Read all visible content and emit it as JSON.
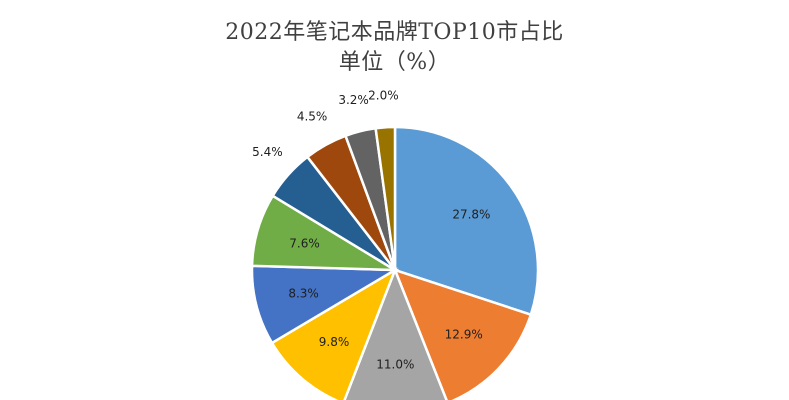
{
  "chart_data": {
    "type": "pie",
    "title": "2022年笔记本品牌TOP10市占比",
    "subtitle": "单位（%）",
    "slices": [
      {
        "value": 27.8,
        "label": "27.8%",
        "color": "#5B9BD5"
      },
      {
        "value": 12.9,
        "label": "12.9%",
        "color": "#ED7D31"
      },
      {
        "value": 11.0,
        "label": "11.0%",
        "color": "#A5A5A5"
      },
      {
        "value": 9.8,
        "label": "9.8%",
        "color": "#FFC000"
      },
      {
        "value": 8.3,
        "label": "8.3%",
        "color": "#4472C4"
      },
      {
        "value": 7.6,
        "label": "7.6%",
        "color": "#70AD47"
      },
      {
        "value": 5.4,
        "label": "5.4%",
        "color": "#255E91"
      },
      {
        "value": 4.5,
        "label": "4.5%",
        "color": "#9E480E"
      },
      {
        "value": 3.2,
        "label": "3.2%",
        "color": "#636363"
      },
      {
        "value": 2.0,
        "label": "2.0%",
        "color": "#997300"
      }
    ]
  }
}
